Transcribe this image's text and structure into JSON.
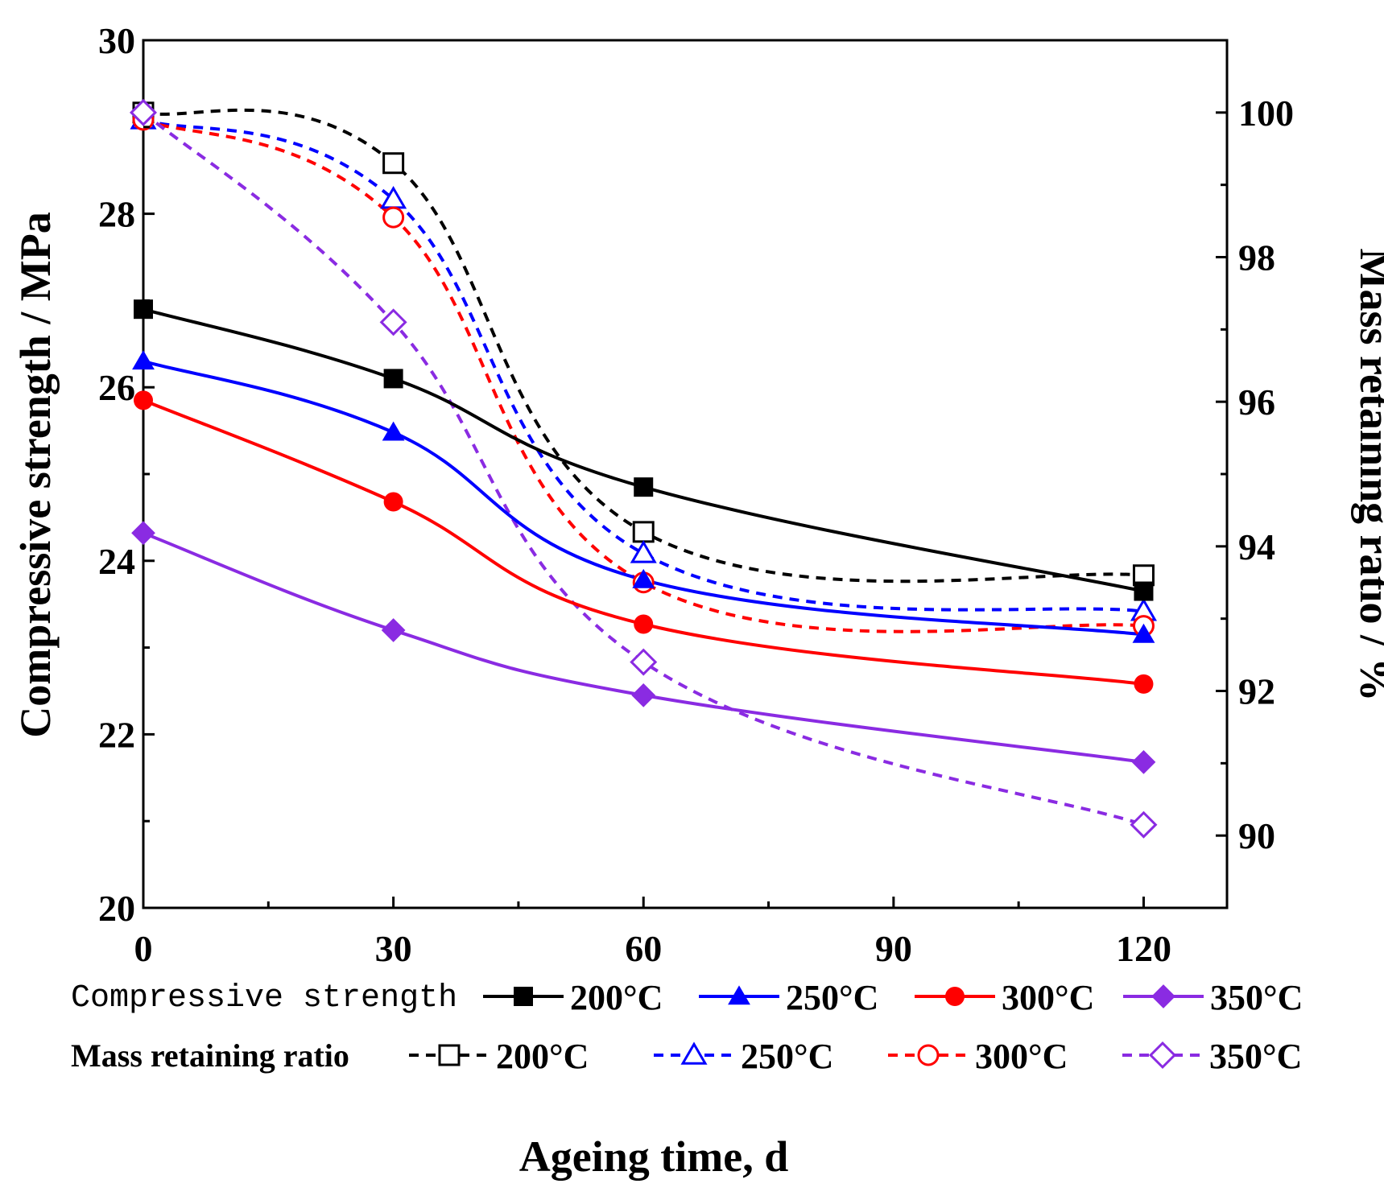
{
  "chart_data": {
    "type": "line",
    "title": "",
    "xlabel": "Ageing time, d",
    "ylabel_left": "Compressive strength / MPa",
    "ylabel_right": "Mass retaining ratio / %",
    "x": [
      0,
      30,
      60,
      120
    ],
    "xlim": [
      0,
      130
    ],
    "ylim_left": [
      20,
      30
    ],
    "ylim_right": [
      89,
      101
    ],
    "x_ticks": [
      "0",
      "30",
      "60",
      "90",
      "120"
    ],
    "y_left_ticks": [
      "20",
      "22",
      "24",
      "26",
      "28",
      "30"
    ],
    "y_right_ticks": [
      "90",
      "92",
      "94",
      "96",
      "98",
      "100"
    ],
    "legend": {
      "group_compressive": "Compressive strength",
      "group_mass": "Mass retaining ratio"
    },
    "series": [
      {
        "name": "200°C",
        "group": "compressive",
        "axis": "left",
        "color": "#000000",
        "marker": "square",
        "filled": true,
        "dashed": false,
        "values": [
          26.9,
          26.1,
          24.85,
          23.65
        ]
      },
      {
        "name": "250°C",
        "group": "compressive",
        "axis": "left",
        "color": "#0000ff",
        "marker": "triangle",
        "filled": true,
        "dashed": false,
        "values": [
          26.3,
          25.48,
          23.78,
          23.15
        ]
      },
      {
        "name": "300°C",
        "group": "compressive",
        "axis": "left",
        "color": "#ff0000",
        "marker": "circle",
        "filled": true,
        "dashed": false,
        "values": [
          25.85,
          24.68,
          23.27,
          22.58
        ]
      },
      {
        "name": "350°C",
        "group": "compressive",
        "axis": "left",
        "color": "#8a2be2",
        "marker": "diamond",
        "filled": true,
        "dashed": false,
        "values": [
          24.32,
          23.2,
          22.45,
          21.68
        ]
      },
      {
        "name": "200°C",
        "group": "mass",
        "axis": "right",
        "color": "#000000",
        "marker": "square",
        "filled": false,
        "dashed": true,
        "values": [
          100.0,
          99.3,
          94.2,
          93.6
        ]
      },
      {
        "name": "250°C",
        "group": "mass",
        "axis": "right",
        "color": "#0000ff",
        "marker": "triangle",
        "filled": false,
        "dashed": true,
        "values": [
          99.9,
          98.8,
          93.9,
          93.1
        ]
      },
      {
        "name": "300°C",
        "group": "mass",
        "axis": "right",
        "color": "#ff0000",
        "marker": "circle",
        "filled": false,
        "dashed": true,
        "values": [
          99.9,
          98.55,
          93.5,
          92.9
        ]
      },
      {
        "name": "350°C",
        "group": "mass",
        "axis": "right",
        "color": "#8a2be2",
        "marker": "diamond",
        "filled": false,
        "dashed": true,
        "values": [
          100.0,
          97.1,
          92.4,
          90.15
        ]
      }
    ]
  }
}
